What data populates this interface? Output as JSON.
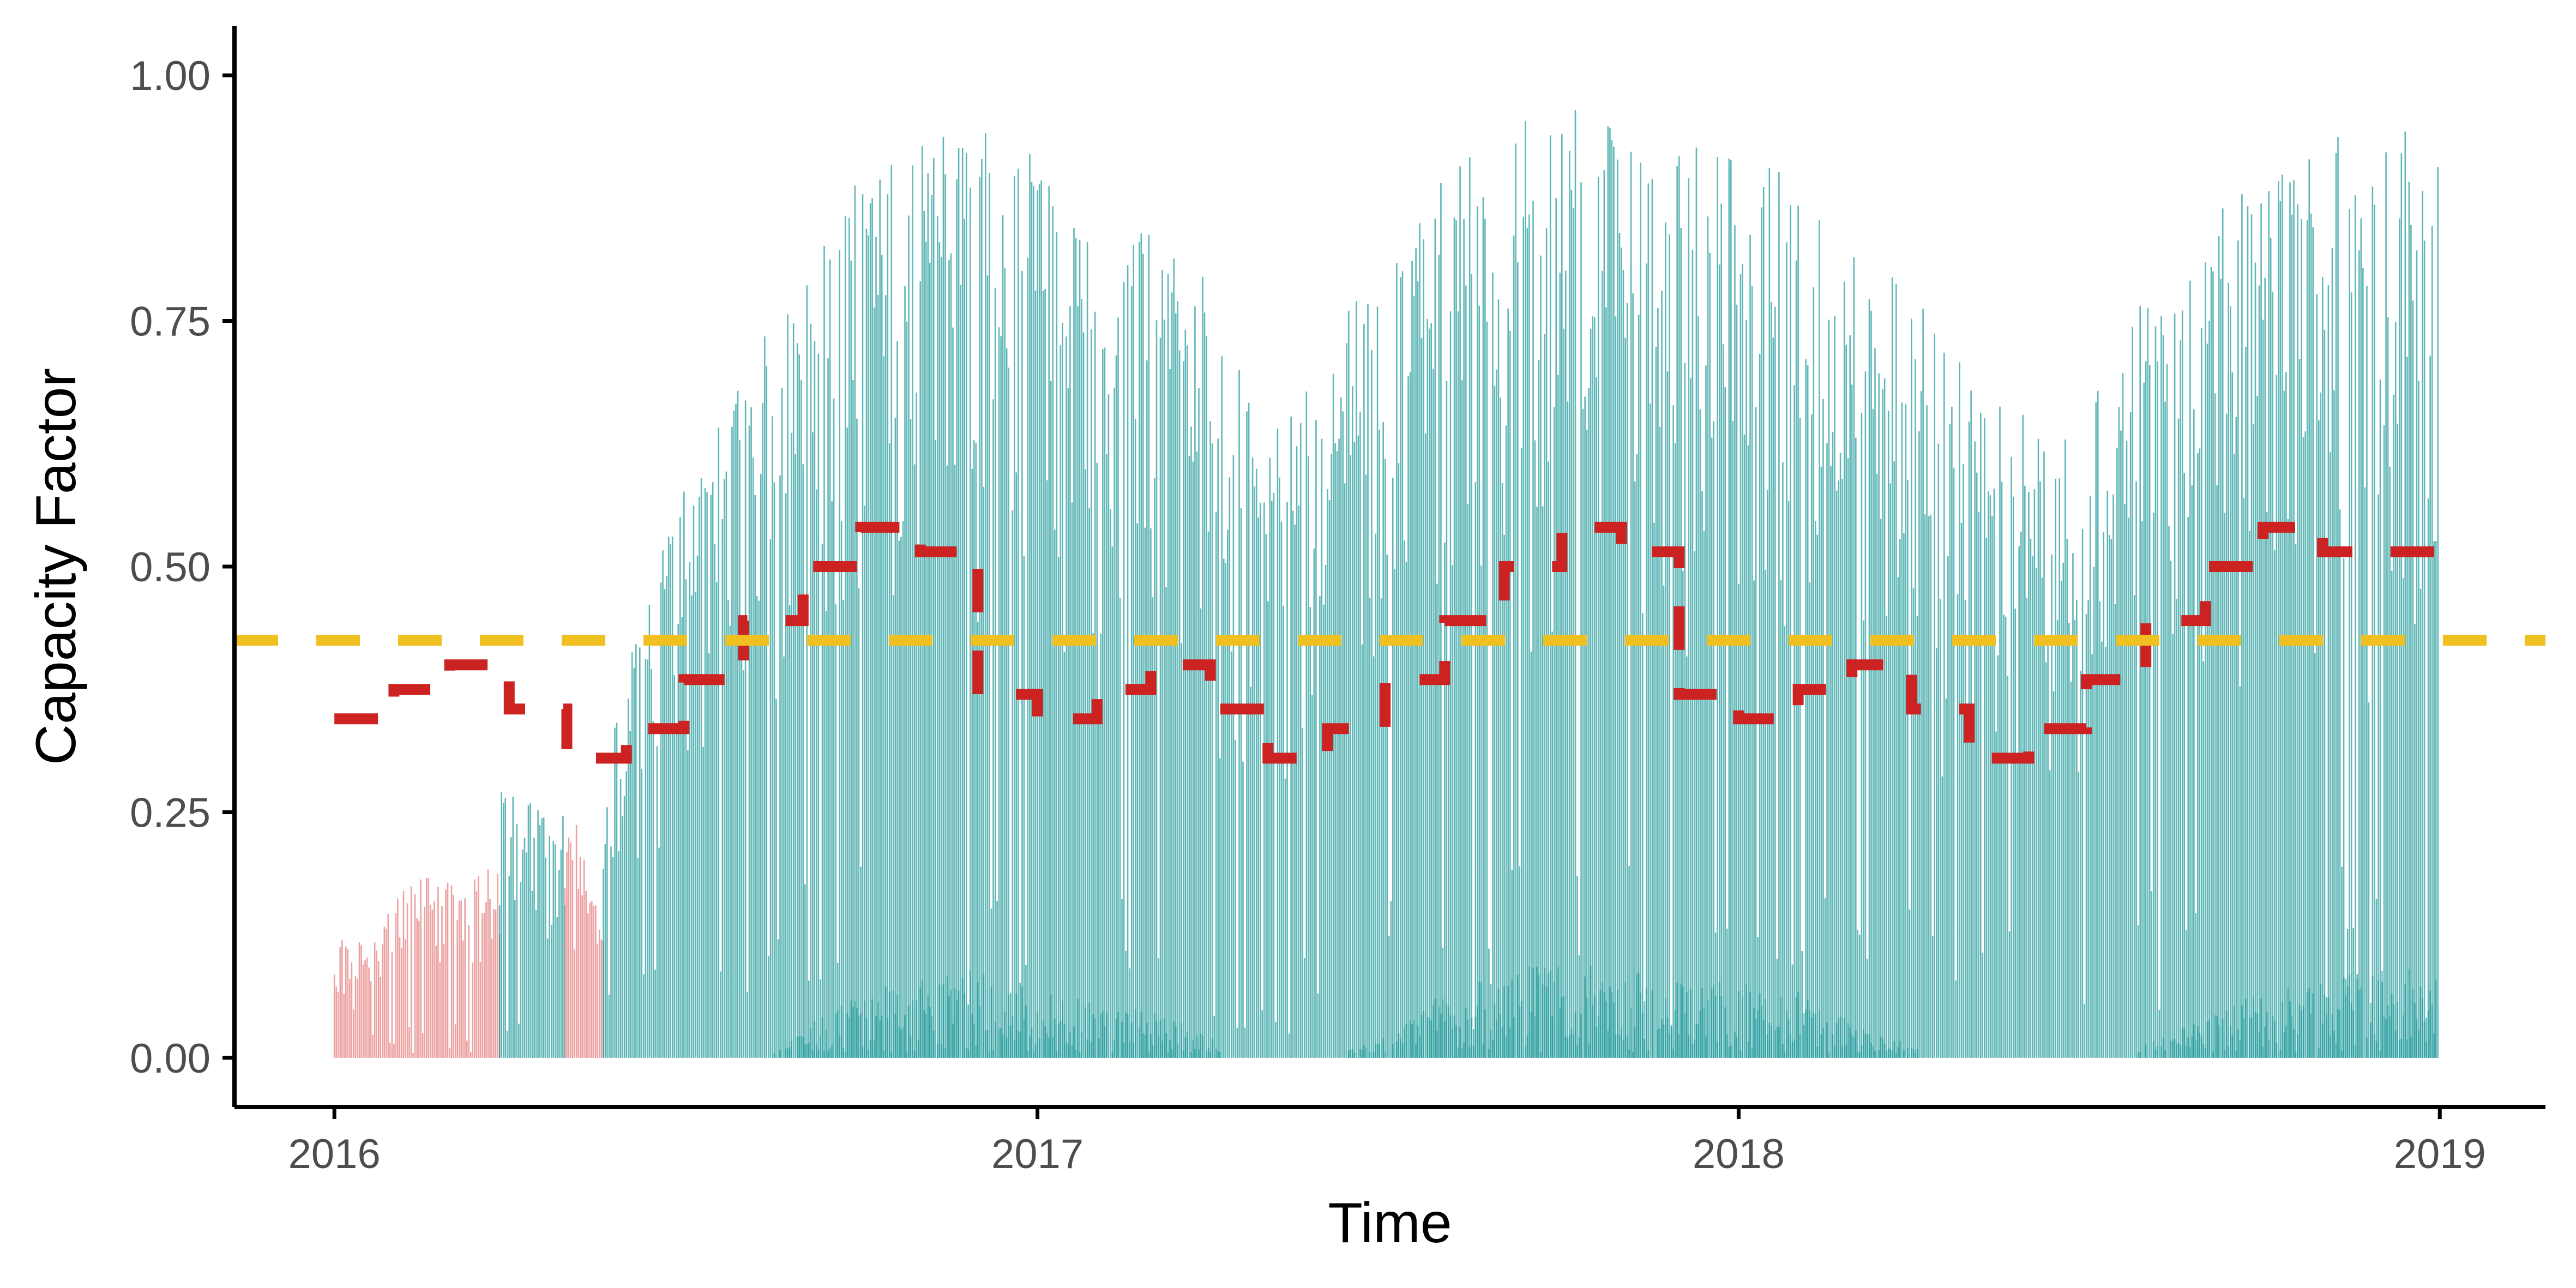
{
  "chart_data": {
    "type": "area",
    "title": "",
    "xlabel": "Time",
    "ylabel": "Capacity Factor",
    "xlim": [
      "2015-11-10",
      "2019-02-25"
    ],
    "ylim": [
      -0.05,
      1.05
    ],
    "x_ticks": [
      "2016",
      "2017",
      "2018",
      "2019"
    ],
    "x_tick_dates": [
      "2016-01-01",
      "2017-01-01",
      "2018-01-01",
      "2019-01-01"
    ],
    "y_ticks": [
      "0.00",
      "0.25",
      "0.50",
      "0.75",
      "1.00"
    ],
    "y_tick_values": [
      0,
      0.25,
      0.5,
      0.75,
      1.0
    ],
    "grid": false,
    "legend": "none",
    "colors": {
      "observed": "#008b8b",
      "gap_filled": "#e06666",
      "monthly_mean": "#cc2222",
      "overall_mean": "#f0c020",
      "axis": "#000000"
    },
    "envelopes": [
      {
        "role": "gap_filled",
        "x": [
          "2016-01-01",
          "2016-01-05",
          "2016-01-20",
          "2016-02-01",
          "2016-02-15",
          "2016-03-01",
          "2016-03-15",
          "2016-03-27"
        ],
        "y_max": [
          0.12,
          0.12,
          0.12,
          0.16,
          0.19,
          0.18,
          0.19,
          0.2
        ]
      },
      {
        "role": "observed",
        "x": [
          "2016-03-27",
          "2016-04-01",
          "2016-04-15",
          "2016-04-30"
        ],
        "y_max": [
          0.28,
          0.27,
          0.26,
          0.25
        ]
      },
      {
        "role": "gap_filled",
        "x": [
          "2016-04-30",
          "2016-05-08",
          "2016-05-20"
        ],
        "y_max": [
          0.25,
          0.24,
          0.12
        ]
      },
      {
        "role": "observed",
        "x": [
          "2016-05-20",
          "2016-06-01",
          "2016-07-01",
          "2016-08-01",
          "2016-09-01",
          "2016-10-01",
          "2016-11-01",
          "2016-12-01",
          "2017-01-01",
          "2017-02-01",
          "2017-03-01",
          "2017-04-01",
          "2017-05-01",
          "2017-06-01",
          "2017-07-01",
          "2017-08-01",
          "2017-09-01",
          "2017-10-01",
          "2017-11-01",
          "2017-12-01",
          "2018-01-01",
          "2018-02-01",
          "2018-03-01",
          "2018-04-01",
          "2018-05-01",
          "2018-06-01",
          "2018-07-01",
          "2018-08-01",
          "2018-09-01",
          "2018-10-01",
          "2018-11-01",
          "2018-12-01",
          "2018-12-31"
        ],
        "y_max": [
          0.3,
          0.4,
          0.6,
          0.7,
          0.82,
          0.9,
          0.93,
          0.95,
          0.92,
          0.87,
          0.86,
          0.8,
          0.62,
          0.75,
          0.8,
          0.9,
          0.95,
          0.97,
          0.95,
          0.93,
          0.92,
          0.9,
          0.83,
          0.78,
          0.7,
          0.66,
          0.66,
          0.78,
          0.85,
          0.9,
          0.95,
          0.97,
          0.95
        ]
      }
    ],
    "monthly_mean": {
      "x_start": [
        "2016-01-01",
        "2016-02-01",
        "2016-03-01",
        "2016-04-01",
        "2016-05-01",
        "2016-06-01",
        "2016-07-01",
        "2016-08-01",
        "2016-09-01",
        "2016-10-01",
        "2016-11-01",
        "2016-12-01",
        "2017-01-01",
        "2017-02-01",
        "2017-03-01",
        "2017-04-01",
        "2017-05-01",
        "2017-06-01",
        "2017-07-01",
        "2017-08-01",
        "2017-09-01",
        "2017-10-01",
        "2017-11-01",
        "2017-12-01",
        "2018-01-01",
        "2018-02-01",
        "2018-03-01",
        "2018-04-01",
        "2018-05-01",
        "2018-06-01",
        "2018-07-01",
        "2018-08-01",
        "2018-09-01",
        "2018-10-01",
        "2018-11-01",
        "2018-12-01"
      ],
      "x_end": [
        "2016-01-31",
        "2016-02-29",
        "2016-03-31",
        "2016-04-30",
        "2016-05-31",
        "2016-06-30",
        "2016-07-31",
        "2016-08-31",
        "2016-09-30",
        "2016-10-31",
        "2016-11-30",
        "2016-12-31",
        "2017-01-31",
        "2017-02-28",
        "2017-03-31",
        "2017-04-30",
        "2017-05-31",
        "2017-06-30",
        "2017-07-31",
        "2017-08-31",
        "2017-09-30",
        "2017-10-31",
        "2017-11-30",
        "2017-12-31",
        "2018-01-31",
        "2018-02-28",
        "2018-03-31",
        "2018-04-30",
        "2018-05-31",
        "2018-06-30",
        "2018-07-31",
        "2018-08-31",
        "2018-09-30",
        "2018-10-31",
        "2018-11-30",
        "2018-12-31"
      ],
      "values": [
        0.345,
        0.375,
        0.4,
        0.355,
        0.305,
        0.335,
        0.385,
        0.445,
        0.5,
        0.54,
        0.515,
        0.37,
        0.345,
        0.375,
        0.4,
        0.355,
        0.305,
        0.335,
        0.385,
        0.445,
        0.5,
        0.54,
        0.515,
        0.37,
        0.345,
        0.375,
        0.4,
        0.355,
        0.305,
        0.335,
        0.385,
        0.445,
        0.5,
        0.54,
        0.515,
        0.515
      ]
    },
    "overall_mean": 0.425
  }
}
